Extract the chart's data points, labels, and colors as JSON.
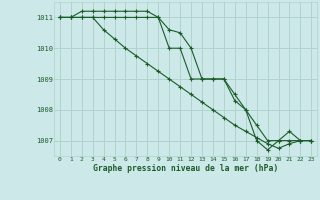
{
  "title": "Graphe pression niveau de la mer (hPa)",
  "background_color": "#cce8e8",
  "grid_color": "#b0d4cc",
  "line_color": "#1a5c28",
  "xlim": [
    -0.5,
    23.5
  ],
  "ylim": [
    1006.5,
    1011.5
  ],
  "yticks": [
    1007,
    1008,
    1009,
    1010,
    1011
  ],
  "xticks": [
    0,
    1,
    2,
    3,
    4,
    5,
    6,
    7,
    8,
    9,
    10,
    11,
    12,
    13,
    14,
    15,
    16,
    17,
    18,
    19,
    20,
    21,
    22,
    23
  ],
  "series": [
    [
      1011.0,
      1011.0,
      1011.0,
      1011.0,
      1011.0,
      1011.0,
      1011.0,
      1011.0,
      1011.0,
      1011.0,
      1010.0,
      1010.0,
      1009.0,
      1009.0,
      1009.0,
      1009.0,
      1008.3,
      1008.0,
      1007.5,
      1007.0,
      1007.0,
      1007.0,
      1007.0,
      1007.0
    ],
    [
      1011.0,
      1011.0,
      1011.0,
      1011.0,
      1010.6,
      1010.3,
      1010.0,
      1009.75,
      1009.5,
      1009.25,
      1009.0,
      1008.75,
      1008.5,
      1008.25,
      1008.0,
      1007.75,
      1007.5,
      1007.3,
      1007.1,
      1006.9,
      1006.75,
      1006.9,
      1007.0,
      1007.0
    ],
    [
      1011.0,
      1011.0,
      1011.2,
      1011.2,
      1011.2,
      1011.2,
      1011.2,
      1011.2,
      1011.2,
      1011.0,
      1010.6,
      1010.5,
      1010.0,
      1009.0,
      1009.0,
      1009.0,
      1008.5,
      1008.0,
      1007.0,
      1006.7,
      1007.0,
      1007.3,
      1007.0,
      1007.0
    ]
  ]
}
